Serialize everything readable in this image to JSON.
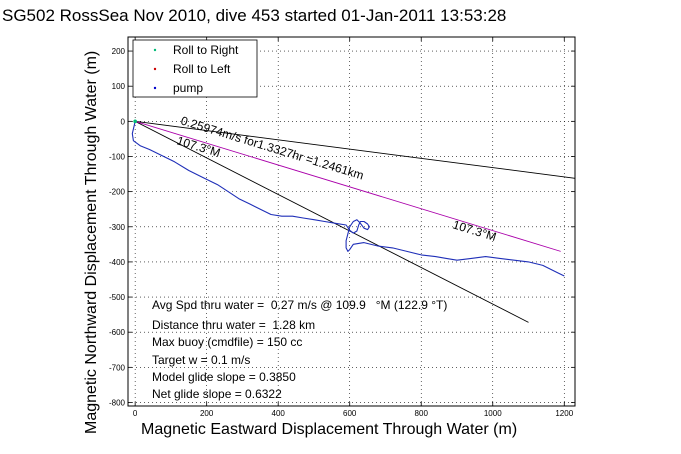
{
  "chart_data": {
    "type": "line",
    "title": "SG502 RossSea Nov 2010, dive 453 started 01-Jan-2011 13:53:28",
    "xlabel": "Magnetic Eastward Displacement Through Water (m)",
    "ylabel": "Magnetic Northward Displacement Through Water (m)",
    "xlim": [
      -20,
      1230
    ],
    "ylim": [
      -810,
      240
    ],
    "xticks": [
      0,
      200,
      400,
      600,
      800,
      1000,
      1200
    ],
    "yticks": [
      -800,
      -700,
      -600,
      -500,
      -400,
      -300,
      -200,
      -100,
      0,
      100,
      200
    ],
    "xtick_labels": [
      "0",
      "200",
      "400",
      "600",
      "800",
      "1000",
      "1200"
    ],
    "ytick_labels": [
      "-800",
      "-700",
      "-600",
      "-500",
      "-400",
      "-300",
      "-200",
      "-100",
      "0",
      "100",
      "200"
    ],
    "grid": true,
    "legend_position": "top-left",
    "legend": [
      {
        "label": "Roll to Right",
        "color": "#00bb77",
        "marker": "dot"
      },
      {
        "label": "Roll to Left",
        "color": "#cc0000",
        "marker": "dot"
      },
      {
        "label": "pump",
        "color": "#0000cc",
        "marker": "dot"
      }
    ],
    "series": [
      {
        "color": "#1f2fb8",
        "x": [
          0,
          -8,
          -5,
          15,
          40,
          70,
          110,
          150,
          190,
          230,
          260,
          290,
          320,
          350,
          380,
          410,
          440,
          470,
          500,
          530,
          560,
          590,
          600,
          610,
          620,
          625,
          630,
          640,
          650,
          655,
          650,
          640,
          630,
          620,
          610,
          600,
          595,
          590,
          590,
          595,
          600,
          610,
          640,
          680,
          720,
          760,
          800,
          840,
          870,
          900,
          940,
          980,
          1020,
          1060,
          1100,
          1140,
          1180,
          1200
        ],
        "y": [
          0,
          -35,
          -55,
          -70,
          -80,
          -95,
          -115,
          -140,
          -160,
          -180,
          -200,
          -220,
          -235,
          -250,
          -265,
          -270,
          -270,
          -275,
          -280,
          -285,
          -290,
          -295,
          -310,
          -318,
          -312,
          -295,
          -285,
          -285,
          -292,
          -300,
          -308,
          -304,
          -290,
          -280,
          -285,
          -300,
          -320,
          -340,
          -360,
          -370,
          -365,
          -350,
          -345,
          -355,
          -360,
          -370,
          -380,
          -385,
          -390,
          -395,
          -390,
          -385,
          -390,
          -395,
          -400,
          -410,
          -430,
          -440
        ]
      }
    ],
    "reference_lines": [
      {
        "x": [
          0,
          1230
        ],
        "y": [
          0,
          -162
        ],
        "color": "#000000"
      },
      {
        "x": [
          0,
          1100
        ],
        "y": [
          0,
          -572
        ],
        "color": "#000000"
      },
      {
        "x": [
          0,
          1190
        ],
        "y": [
          0,
          -370
        ],
        "color": "#aa00aa"
      }
    ],
    "annotations": [
      {
        "text": "0.25974m/s for1.3327hr =1.2461km",
        "rotation": -17
      },
      {
        "text": "107.3°M",
        "rotation": -17
      },
      {
        "text": "107.3°M",
        "rotation": -17
      }
    ],
    "stats": [
      "Avg Spd thru water =  0.27 m/s @ 109.9   °M (122.9 °T)",
      "Distance thru water =  1.28 km",
      "Max buoy (cmdfile) = 150 cc",
      "Target w = 0.1 m/s",
      "Model glide slope = 0.3850",
      "Net glide slope = 0.6322"
    ]
  }
}
